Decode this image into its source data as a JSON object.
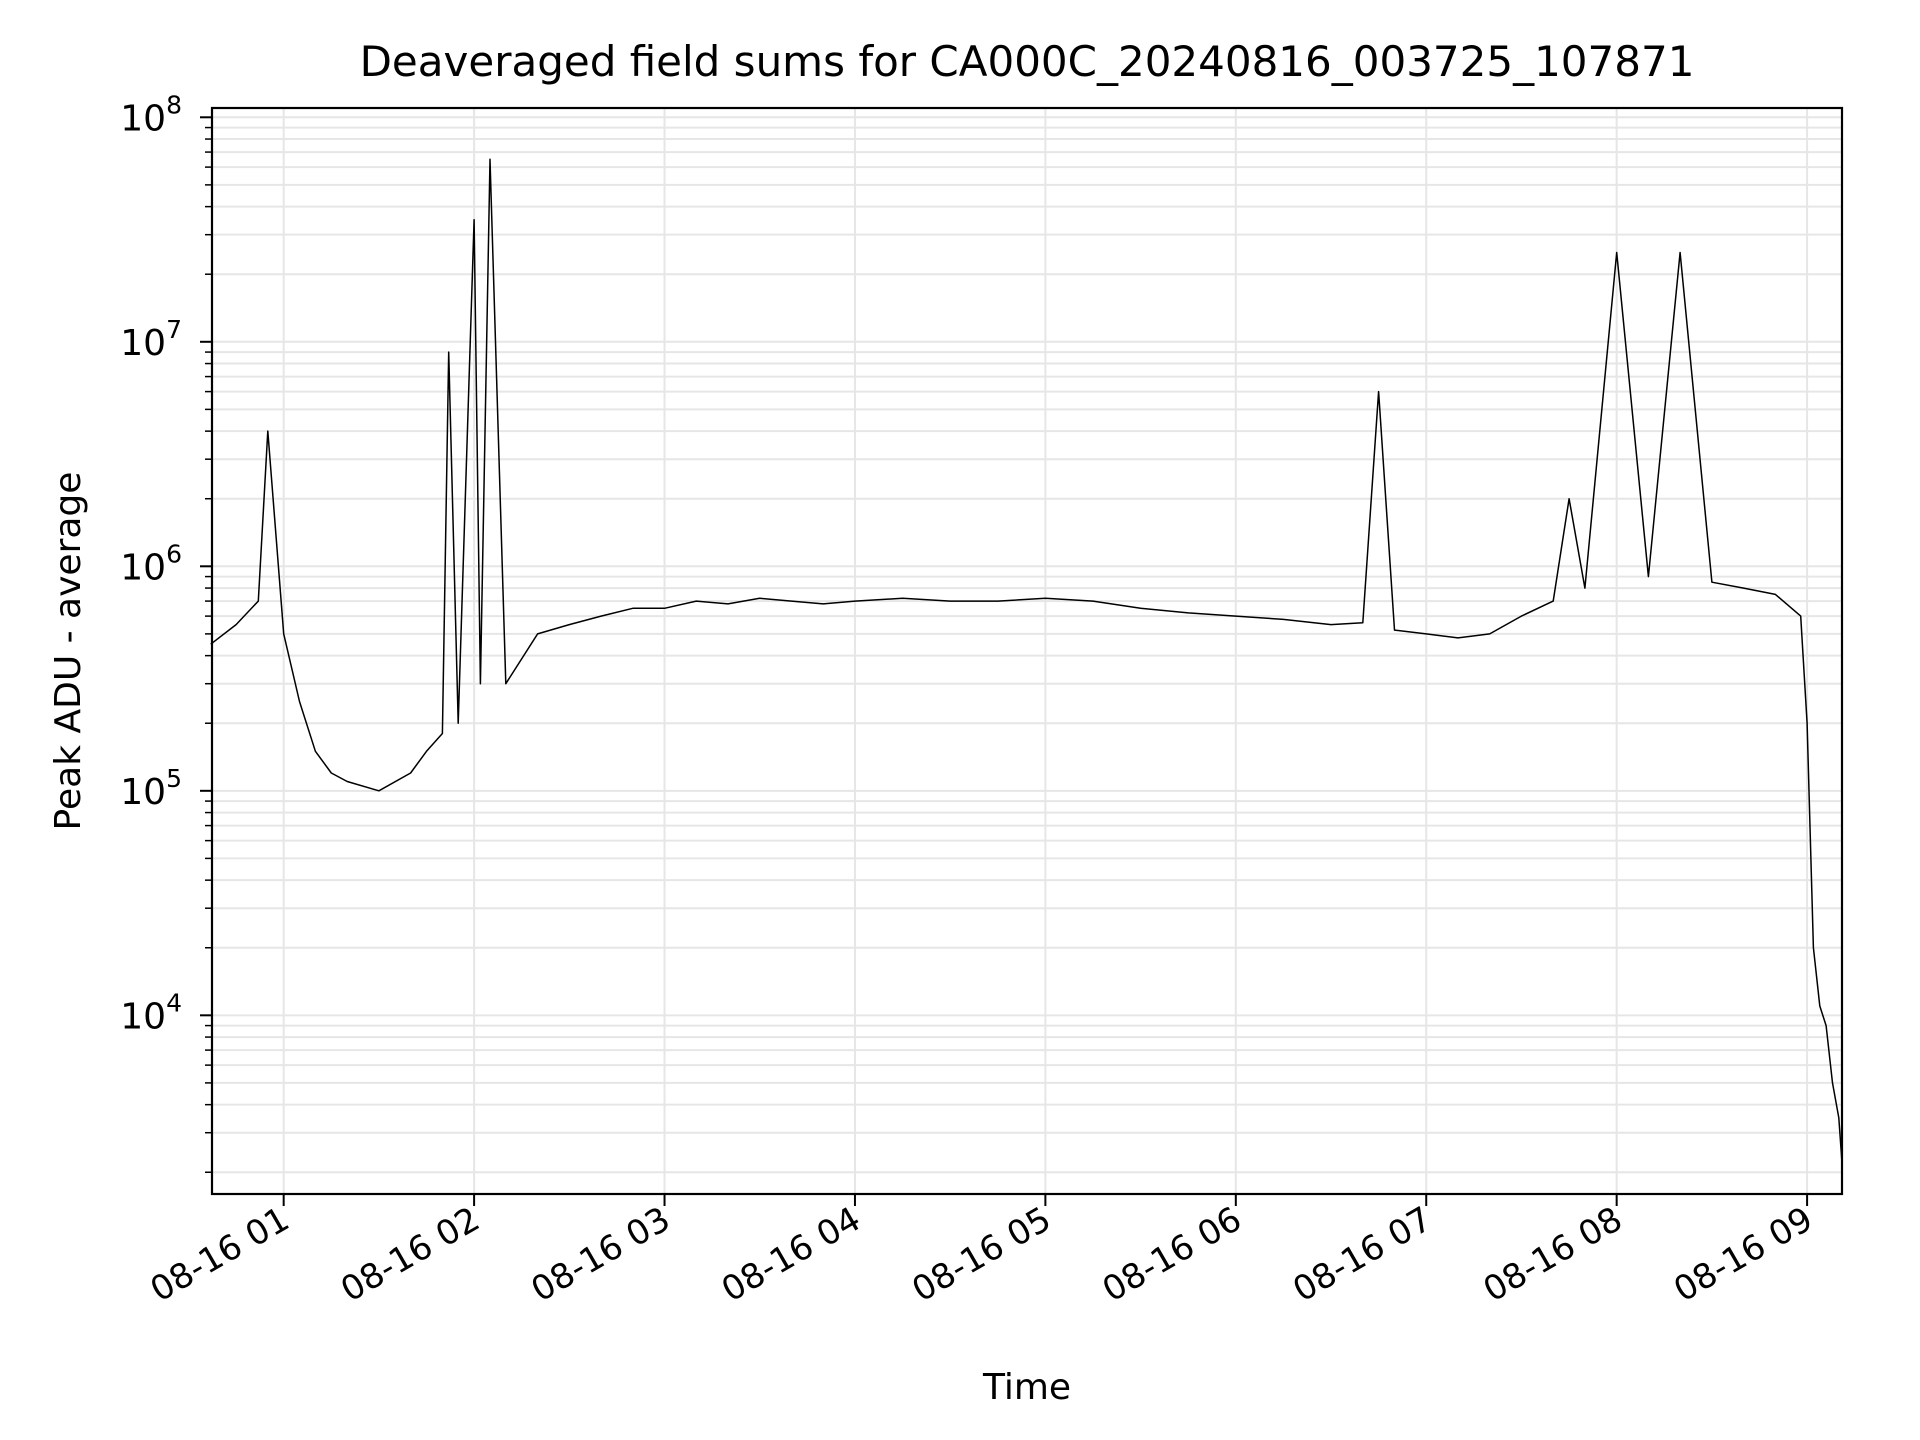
{
  "chart_data": {
    "type": "line",
    "title": "Deaveraged field sums for CA000C_20240816_003725_107871",
    "xlabel": "Time",
    "ylabel": "Peak ADU - average",
    "yscale": "log",
    "ylim": [
      1600,
      110000000
    ],
    "xlim": [
      "2024-08-16 00:37:25",
      "2024-08-16 09:11:00"
    ],
    "grid": true,
    "x_ticks": [
      "08-16 01",
      "08-16 02",
      "08-16 03",
      "08-16 04",
      "08-16 05",
      "08-16 06",
      "08-16 07",
      "08-16 08",
      "08-16 09"
    ],
    "y_ticks": [
      {
        "base": "10",
        "exp": "4"
      },
      {
        "base": "10",
        "exp": "5"
      },
      {
        "base": "10",
        "exp": "6"
      },
      {
        "base": "10",
        "exp": "7"
      },
      {
        "base": "10",
        "exp": "8"
      }
    ],
    "line_color": "#000000",
    "series": [
      {
        "x": [
          "00:37",
          "00:45",
          "00:52",
          "00:55",
          "01:00",
          "01:05",
          "01:10",
          "01:15",
          "01:20",
          "01:30",
          "01:40",
          "01:45",
          "01:50",
          "01:52",
          "01:55",
          "02:00",
          "02:02",
          "02:05",
          "02:10",
          "02:20",
          "02:30",
          "02:40",
          "02:50",
          "03:00",
          "03:10",
          "03:20",
          "03:30",
          "03:40",
          "03:50",
          "04:00",
          "04:15",
          "04:30",
          "04:45",
          "05:00",
          "05:15",
          "05:30",
          "05:45",
          "06:00",
          "06:15",
          "06:30",
          "06:40",
          "06:45",
          "06:50",
          "07:00",
          "07:10",
          "07:20",
          "07:30",
          "07:40",
          "07:45",
          "07:50",
          "08:00",
          "08:10",
          "08:20",
          "08:30",
          "08:40",
          "08:50",
          "08:58",
          "09:00",
          "09:02",
          "09:04",
          "09:06",
          "09:08",
          "09:10",
          "09:11"
        ],
        "y": [
          450000,
          550000,
          700000,
          4000000,
          500000,
          250000,
          150000,
          120000,
          110000,
          100000,
          120000,
          150000,
          180000,
          9000000,
          200000,
          35000000,
          300000,
          65000000,
          300000,
          500000,
          550000,
          600000,
          650000,
          650000,
          700000,
          680000,
          720000,
          700000,
          680000,
          700000,
          720000,
          700000,
          700000,
          720000,
          700000,
          650000,
          620000,
          600000,
          580000,
          550000,
          560000,
          6000000,
          520000,
          500000,
          480000,
          500000,
          600000,
          700000,
          2000000,
          800000,
          25000000,
          900000,
          25000000,
          850000,
          800000,
          750000,
          600000,
          200000,
          20000,
          11000,
          9000,
          5000,
          3500,
          2200
        ]
      }
    ]
  }
}
